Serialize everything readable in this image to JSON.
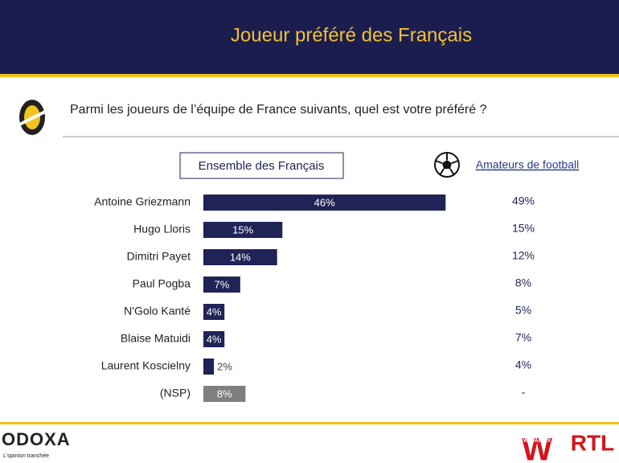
{
  "header": {
    "title": "Joueur préféré des Français"
  },
  "chart_data": {
    "type": "hbar",
    "subtitle": "Parmi les joueurs de l’équipe de France suivants, quel est votre préféré ?",
    "categories": [
      "Antoine Griezmann",
      "Hugo Lloris",
      "Dimitri Payet",
      "Paul Pogba",
      "N'Golo Kanté",
      "Blaise Matuidi",
      "Laurent Koscielny",
      "(NSP)"
    ],
    "series": [
      {
        "name": "Ensemble des Français",
        "color": "#1f2356",
        "colors": [
          "#1f2356",
          "#1f2356",
          "#1f2356",
          "#1f2356",
          "#1f2356",
          "#1f2356",
          "#1f2356",
          "#7f7f7f"
        ],
        "values": [
          46,
          15,
          14,
          7,
          4,
          4,
          2,
          8
        ],
        "value_labels": [
          "46%",
          "15%",
          "14%",
          "7%",
          "4%",
          "4%",
          "2%",
          "8%"
        ]
      },
      {
        "name": "Amateurs de football",
        "color": "#1f2356",
        "values": [
          49,
          15,
          12,
          8,
          5,
          7,
          4,
          null
        ],
        "value_labels": [
          "49%",
          "15%",
          "12%",
          "8%",
          "5%",
          "7%",
          "4%",
          "-"
        ]
      }
    ]
  },
  "footer": {
    "brand": "ODOXA",
    "tagline": "L'opinion tranchée",
    "sponsor": "WINAMAX",
    "partner": "RTL"
  }
}
